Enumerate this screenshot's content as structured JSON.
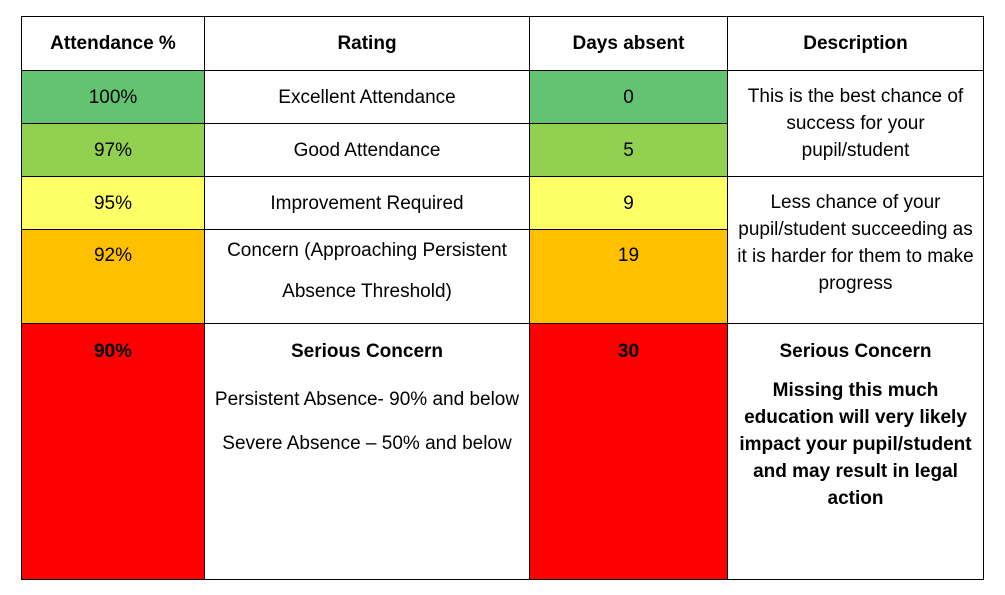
{
  "headers": [
    "Attendance %",
    "Rating",
    "Days absent",
    "Description"
  ],
  "rows": [
    {
      "attendance": "100%",
      "rating": "Excellent Attendance",
      "days": "0"
    },
    {
      "attendance": "97%",
      "rating": "Good Attendance",
      "days": "5"
    },
    {
      "attendance": "95%",
      "rating": "Improvement Required",
      "days": "9"
    },
    {
      "attendance": "92%",
      "rating": "Concern (Approaching Persistent Absence Threshold)",
      "days": "19"
    },
    {
      "attendance": "90%",
      "rating_title": "Serious Concern",
      "rating_line2": "Persistent Absence- 90% and below",
      "rating_line3": "Severe Absence – 50% and below",
      "days": "30"
    }
  ],
  "descriptions": {
    "group1": "This is the best chance of success for your pupil/student",
    "group2": "Less chance of your pupil/student succeeding as it is harder for them to make progress",
    "group3_title": "Serious Concern",
    "group3_body": "Missing this much education will very likely impact your pupil/student and may result in legal action"
  },
  "colors": {
    "green": "#63c371",
    "light_green": "#92d050",
    "yellow": "#ffff66",
    "orange": "#ffc000",
    "red": "#ff0000"
  }
}
